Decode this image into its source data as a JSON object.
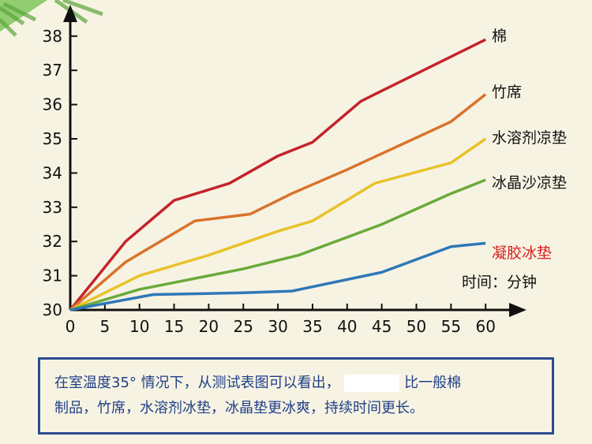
{
  "chart_data": {
    "type": "line",
    "x_axis_unit_label": "时间：分钟",
    "xlim": [
      0,
      60
    ],
    "ylim": [
      30,
      38
    ],
    "x_ticks": [
      0,
      5,
      10,
      15,
      20,
      25,
      30,
      35,
      40,
      45,
      50,
      55,
      60
    ],
    "y_ticks": [
      30,
      31,
      32,
      33,
      34,
      35,
      36,
      37,
      38
    ],
    "grid": false,
    "series": [
      {
        "name": "棉",
        "color": "#c4232b",
        "x": [
          0,
          8,
          15,
          23,
          30,
          35,
          42,
          45,
          60
        ],
        "y": [
          30,
          32,
          33.2,
          33.7,
          34.5,
          34.9,
          36.1,
          36.4,
          37.9
        ]
      },
      {
        "name": "竹席",
        "color": "#d9732a",
        "x": [
          0,
          8,
          18,
          26,
          32,
          40,
          55,
          60
        ],
        "y": [
          30,
          31.4,
          32.6,
          32.8,
          33.4,
          34.1,
          35.5,
          36.3
        ]
      },
      {
        "name": "水溶剂凉垫",
        "color": "#e8c22a",
        "x": [
          0,
          10,
          20,
          30,
          35,
          44,
          55,
          60
        ],
        "y": [
          30,
          31,
          31.6,
          32.3,
          32.6,
          33.7,
          34.3,
          35
        ]
      },
      {
        "name": "冰晶沙凉垫",
        "color": "#6aaa3a",
        "x": [
          0,
          10,
          15,
          25,
          33,
          45,
          55,
          60
        ],
        "y": [
          30,
          30.6,
          30.8,
          31.2,
          31.6,
          32.5,
          33.4,
          33.8
        ]
      },
      {
        "name": "凝胶冰垫",
        "color": "#2e78b7",
        "label_color": "#d8201e",
        "x": [
          0,
          12,
          25,
          32,
          45,
          55,
          60
        ],
        "y": [
          30,
          30.45,
          30.5,
          30.55,
          31.1,
          31.85,
          31.95
        ]
      }
    ]
  },
  "caption": {
    "line1_part1": "在室温度35°  情况下，从测试表图可以看出，",
    "line1_part2": "比一般棉",
    "line2": "制品，竹席，水溶剂冰垫，冰晶垫更冰爽，持续时间更长。"
  }
}
